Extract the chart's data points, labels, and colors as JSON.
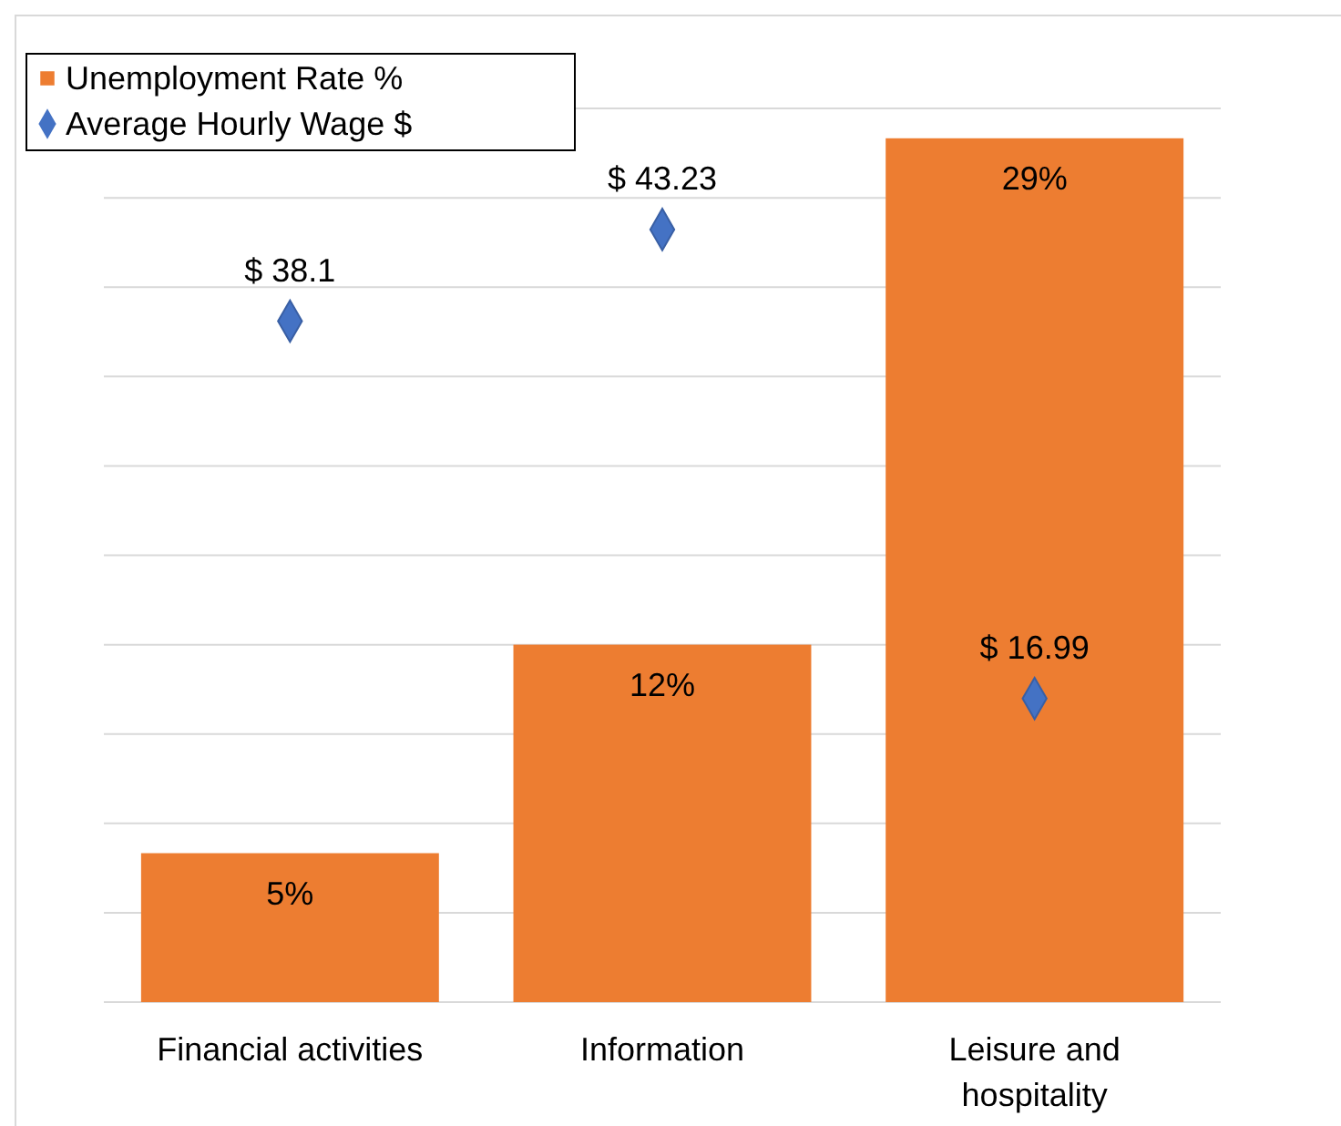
{
  "chart_data": {
    "type": "bar",
    "categories": [
      "Financial activities",
      "Information",
      "Leisure and hospitality"
    ],
    "series": [
      {
        "name": "Unemployment Rate %",
        "color": "#ed7d31",
        "values": [
          5,
          12,
          29
        ],
        "value_labels": [
          "5%",
          "12%",
          "29%"
        ]
      },
      {
        "name": "Average Hourly Wage $",
        "type": "scatter",
        "axis": "y2",
        "color": "#4472c4",
        "marker": "diamond",
        "values": [
          38.1,
          43.23,
          16.99
        ],
        "value_labels": [
          "$ 38.1",
          "$ 43.23",
          "$ 16.99"
        ]
      }
    ],
    "ylim": [
      0,
      33
    ],
    "yticks": [
      {
        "value": 0,
        "label": null
      },
      {
        "value": 3,
        "label": null
      },
      {
        "value": 6,
        "label": null
      },
      {
        "value": 9,
        "label": null
      },
      {
        "value": 12,
        "label": null
      },
      {
        "value": 15,
        "label": null
      },
      {
        "value": 18,
        "label": null
      },
      {
        "value": 21,
        "label": null
      },
      {
        "value": 24,
        "label": null
      },
      {
        "value": 27,
        "label": null
      },
      {
        "value": 30,
        "label": null
      }
    ],
    "y2lim": [
      0,
      55
    ],
    "tick_labels": "x",
    "grid": "y",
    "legend": "top left"
  }
}
